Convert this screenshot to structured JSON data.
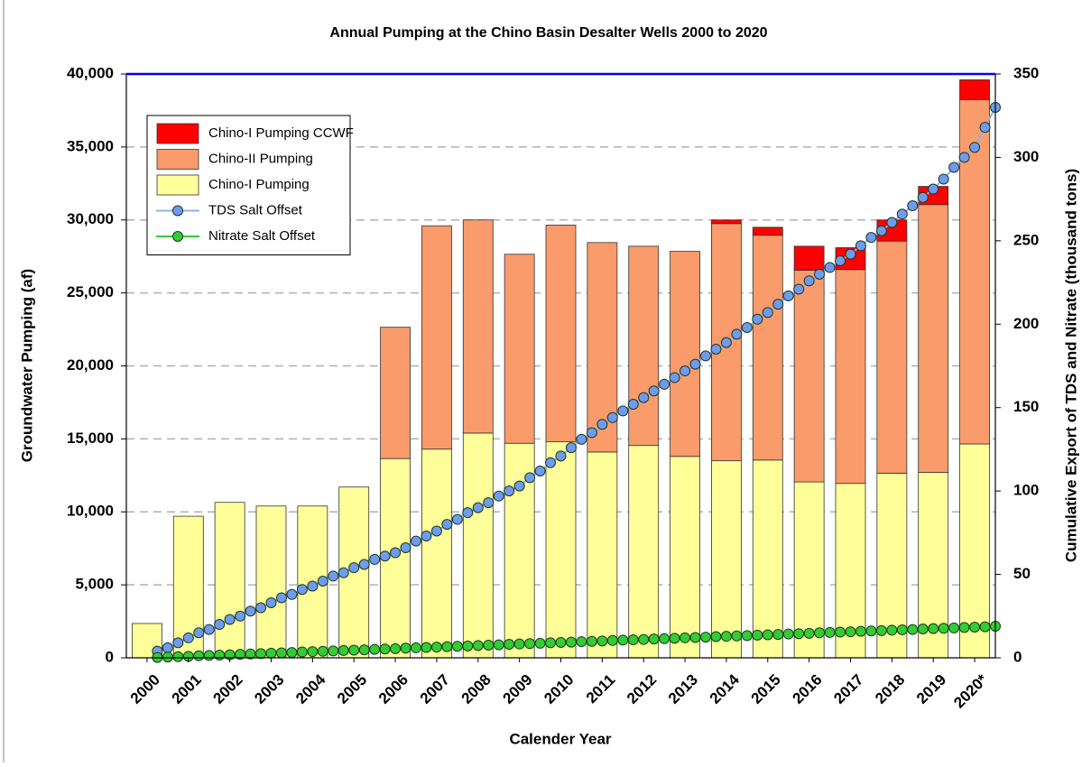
{
  "chart_data": {
    "type": "bar",
    "title": "Annual Pumping at the Chino Basin Desalter Wells 2000 to 2020",
    "x_label": "Calender Year",
    "y_label": "Groundwater Pumping (af)",
    "y2_label": "Cumulative Export of TDS and Nitrate (thousand tons)",
    "categories": [
      "2000",
      "2001",
      "2002",
      "2003",
      "2004",
      "2005",
      "2006",
      "2007",
      "2008",
      "2009",
      "2010",
      "2011",
      "2012",
      "2013",
      "2014",
      "2015",
      "2016",
      "2017",
      "2018",
      "2019",
      "2020*"
    ],
    "xlim": [
      1999.5,
      2020.5
    ],
    "ylim": [
      0,
      40000
    ],
    "yticks": [
      {
        "value": 0,
        "label": "0"
      },
      {
        "value": 5000,
        "label": "5,000"
      },
      {
        "value": 10000,
        "label": "10,000"
      },
      {
        "value": 15000,
        "label": "15,000"
      },
      {
        "value": 20000,
        "label": "20,000"
      },
      {
        "value": 25000,
        "label": "25,000"
      },
      {
        "value": 30000,
        "label": "30,000"
      },
      {
        "value": 35000,
        "label": "35,000"
      },
      {
        "value": 40000,
        "label": "40,000"
      }
    ],
    "y2lim": [
      0,
      350
    ],
    "y2ticks": [
      0,
      50,
      100,
      150,
      200,
      250,
      300,
      350
    ],
    "grid": true,
    "legend": "upper left",
    "series": [
      {
        "name": "Chino-I Pumping",
        "type": "bar",
        "color": "#ffff99",
        "values": [
          2350,
          9700,
          10650,
          10400,
          10400,
          11700,
          13650,
          14300,
          15400,
          14700,
          14800,
          14100,
          14550,
          13800,
          13500,
          13550,
          12050,
          11950,
          12650,
          12700,
          14650
        ]
      },
      {
        "name": "Chino-II Pumping",
        "type": "bar",
        "color": "#f99b6b",
        "values": [
          0,
          0,
          0,
          0,
          0,
          0,
          9000,
          15300,
          14600,
          12950,
          14850,
          14350,
          13650,
          14050,
          16250,
          15400,
          14500,
          14650,
          15900,
          18350,
          23600
        ]
      },
      {
        "name": "Chino-I Pumping CCWF",
        "type": "bar",
        "color": "#ff0000",
        "values": [
          0,
          0,
          0,
          0,
          0,
          0,
          0,
          0,
          0,
          0,
          0,
          0,
          0,
          0,
          250,
          550,
          1650,
          1500,
          1450,
          1250,
          1350
        ]
      },
      {
        "name": "TDS Salt Offset",
        "type": "line",
        "axis": "y2",
        "color": "#6f9bef",
        "line_color": "#8db4e2",
        "x": [
          2000.25,
          2000.5,
          2000.75,
          2001,
          2001.25,
          2001.5,
          2001.75,
          2002,
          2002.25,
          2002.5,
          2002.75,
          2003,
          2003.25,
          2003.5,
          2003.75,
          2004,
          2004.25,
          2004.5,
          2004.75,
          2005,
          2005.25,
          2005.5,
          2005.75,
          2006,
          2006.25,
          2006.5,
          2006.75,
          2007,
          2007.25,
          2007.5,
          2007.75,
          2008,
          2008.25,
          2008.5,
          2008.75,
          2009,
          2009.25,
          2009.5,
          2009.75,
          2010,
          2010.25,
          2010.5,
          2010.75,
          2011,
          2011.25,
          2011.5,
          2011.75,
          2012,
          2012.25,
          2012.5,
          2012.75,
          2013,
          2013.25,
          2013.5,
          2013.75,
          2014,
          2014.25,
          2014.5,
          2014.75,
          2015,
          2015.25,
          2015.5,
          2015.75,
          2016,
          2016.25,
          2016.5,
          2016.75,
          2017,
          2017.25,
          2017.5,
          2017.75,
          2018,
          2018.25,
          2018.5,
          2018.75,
          2019,
          2019.25,
          2019.5,
          2019.75,
          2020,
          2020.25,
          2020.5
        ],
        "values": [
          4,
          6,
          9,
          12,
          15,
          17,
          20,
          23,
          25,
          28,
          30,
          33,
          36,
          38,
          41,
          43,
          46,
          49,
          51,
          54,
          56,
          59,
          61,
          63,
          66,
          70,
          73,
          76,
          80,
          83,
          87,
          90,
          93,
          97,
          100,
          103,
          108,
          112,
          117,
          121,
          126,
          131,
          135,
          140,
          144,
          148,
          152,
          156,
          160,
          164,
          168,
          172,
          176,
          181,
          185,
          189,
          194,
          198,
          203,
          207,
          212,
          217,
          221,
          226,
          230,
          234,
          238,
          242,
          247,
          252,
          256,
          261,
          266,
          271,
          276,
          281,
          287,
          294,
          300,
          306,
          318,
          330
        ]
      },
      {
        "name": "Nitrate Salt Offset",
        "type": "line",
        "axis": "y2",
        "color": "#33cc33",
        "line_color": "#33cc33",
        "x": [
          2000.25,
          2000.5,
          2000.75,
          2001,
          2001.25,
          2001.5,
          2001.75,
          2002,
          2002.25,
          2002.5,
          2002.75,
          2003,
          2003.25,
          2003.5,
          2003.75,
          2004,
          2004.25,
          2004.5,
          2004.75,
          2005,
          2005.25,
          2005.5,
          2005.75,
          2006,
          2006.25,
          2006.5,
          2006.75,
          2007,
          2007.25,
          2007.5,
          2007.75,
          2008,
          2008.25,
          2008.5,
          2008.75,
          2009,
          2009.25,
          2009.5,
          2009.75,
          2010,
          2010.25,
          2010.5,
          2010.75,
          2011,
          2011.25,
          2011.5,
          2011.75,
          2012,
          2012.25,
          2012.5,
          2012.75,
          2013,
          2013.25,
          2013.5,
          2013.75,
          2014,
          2014.25,
          2014.5,
          2014.75,
          2015,
          2015.25,
          2015.5,
          2015.75,
          2016,
          2016.25,
          2016.5,
          2016.75,
          2017,
          2017.25,
          2017.5,
          2017.75,
          2018,
          2018.25,
          2018.5,
          2018.75,
          2019,
          2019.25,
          2019.5,
          2019.75,
          2020,
          2020.25,
          2020.5
        ],
        "values": [
          0.2,
          0.5,
          0.7,
          0.9,
          1.2,
          1.4,
          1.6,
          1.8,
          2.1,
          2.3,
          2.5,
          2.8,
          3.0,
          3.2,
          3.5,
          3.7,
          3.9,
          4.1,
          4.4,
          4.6,
          4.8,
          5.1,
          5.3,
          5.5,
          5.8,
          6.0,
          6.2,
          6.4,
          6.7,
          6.9,
          7.1,
          7.4,
          7.6,
          7.8,
          8.1,
          8.3,
          8.5,
          8.7,
          9.0,
          9.2,
          9.4,
          9.7,
          9.9,
          10.1,
          10.4,
          10.6,
          10.8,
          11.0,
          11.3,
          11.5,
          11.7,
          12.0,
          12.2,
          12.4,
          12.7,
          12.9,
          13.1,
          13.3,
          13.6,
          13.8,
          14.0,
          14.3,
          14.5,
          14.7,
          15.0,
          15.2,
          15.4,
          15.6,
          15.9,
          16.1,
          16.3,
          16.6,
          16.8,
          17.0,
          17.3,
          17.5,
          17.7,
          17.9,
          18.2,
          18.4,
          18.6,
          18.9
        ]
      }
    ]
  }
}
